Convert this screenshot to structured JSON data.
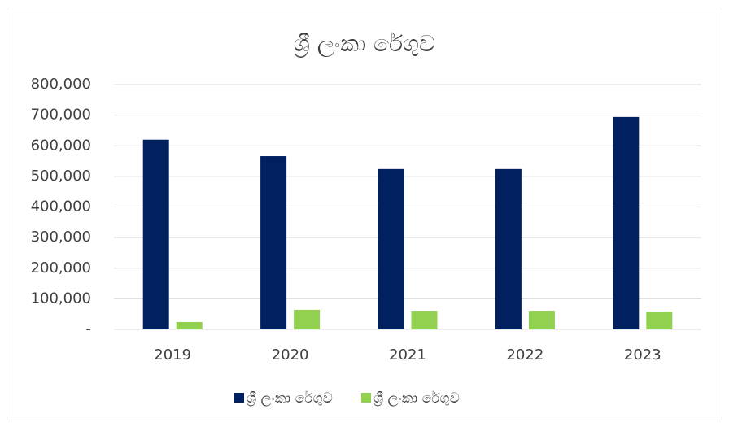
{
  "chart_data": {
    "type": "bar",
    "title": "ශ්‍රී ලංකා රේගුව",
    "categories": [
      "2019",
      "2020",
      "2021",
      "2022",
      "2023"
    ],
    "series": [
      {
        "name": "ශ්‍රී ලංකා රේගුව",
        "color": "#002060",
        "values": [
          620000,
          566000,
          524000,
          524000,
          694000
        ]
      },
      {
        "name": "ශ්‍රී ලංකා රේගුව",
        "color": "#92d050",
        "values": [
          24000,
          64000,
          61000,
          61000,
          58000
        ]
      }
    ],
    "ylim": [
      0,
      800000
    ],
    "yticks": [
      {
        "value": 0,
        "label": "-"
      },
      {
        "value": 100000,
        "label": "100,000"
      },
      {
        "value": 200000,
        "label": "200,000"
      },
      {
        "value": 300000,
        "label": "300,000"
      },
      {
        "value": 400000,
        "label": "400,000"
      },
      {
        "value": 500000,
        "label": "500,000"
      },
      {
        "value": 600000,
        "label": "600,000"
      },
      {
        "value": 700000,
        "label": "700,000"
      },
      {
        "value": 800000,
        "label": "800,000"
      }
    ],
    "grid": true,
    "legend": "bottom"
  }
}
